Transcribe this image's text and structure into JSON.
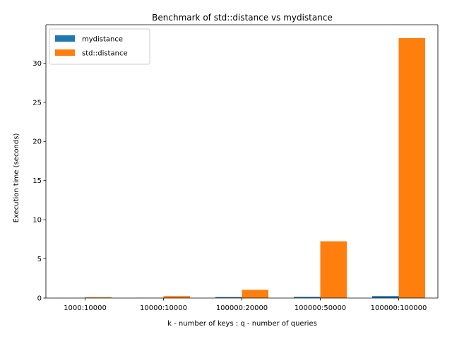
{
  "chart_data": {
    "type": "bar",
    "title": "Benchmark of std::distance vs mydistance",
    "xlabel": "k - number of keys : q - number of queries",
    "ylabel": "Execution time (seconds)",
    "categories": [
      "1000:10000",
      "10000:10000",
      "100000:20000",
      "100000:50000",
      "100000:100000"
    ],
    "series": [
      {
        "name": "mydistance",
        "values": [
          0.01,
          0.02,
          0.12,
          0.15,
          0.25
        ],
        "color": "#1f77b4"
      },
      {
        "name": "std::distance",
        "values": [
          0.09,
          0.25,
          1.05,
          7.25,
          33.2
        ],
        "color": "#ff7f0e"
      }
    ],
    "ylim": [
      0,
      34.9
    ],
    "yticks": [
      0,
      5,
      10,
      15,
      20,
      25,
      30
    ],
    "grid": false,
    "legend": "top-left"
  }
}
